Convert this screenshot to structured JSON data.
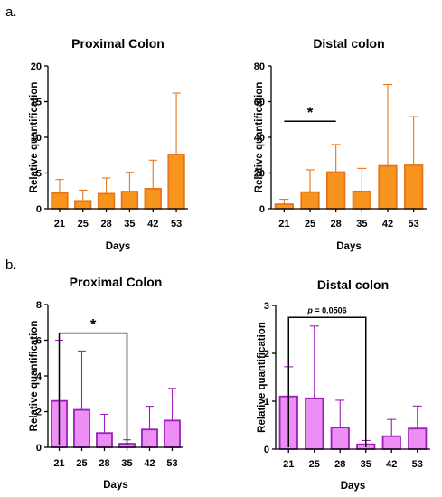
{
  "panels": [
    {
      "letter": "a."
    },
    {
      "letter": "b."
    }
  ],
  "chart_data": [
    {
      "type": "bar",
      "title": "Proximal Colon",
      "xlabel": "Days",
      "ylabel": "Relative quantification",
      "categories": [
        "21",
        "25",
        "28",
        "35",
        "42",
        "53"
      ],
      "values": [
        2.2,
        1.1,
        2.1,
        2.4,
        2.8,
        7.6
      ],
      "error_upper": [
        4.1,
        2.6,
        4.3,
        5.1,
        6.8,
        16.2
      ],
      "ylim": [
        0,
        20
      ],
      "yticks": [
        "0",
        "5",
        "10",
        "15",
        "20"
      ],
      "color": "#f7941d",
      "edge_color": "#e8751a",
      "annotations": []
    },
    {
      "type": "bar",
      "title": "Distal colon",
      "xlabel": "Days",
      "ylabel": "Relative quantification",
      "categories": [
        "21",
        "25",
        "28",
        "35",
        "42",
        "53"
      ],
      "values": [
        2.5,
        9.3,
        20.5,
        9.7,
        24.0,
        24.3
      ],
      "error_upper": [
        5.3,
        21.8,
        36.0,
        22.6,
        69.6,
        51.6
      ],
      "ylim": [
        0,
        80
      ],
      "yticks": [
        "0",
        "20",
        "40",
        "60",
        "80"
      ],
      "color": "#f7941d",
      "edge_color": "#e8751a",
      "annotations": [
        {
          "text": "*",
          "from": "21",
          "to": "28",
          "y": 49,
          "style": "line"
        }
      ]
    },
    {
      "type": "bar",
      "title": "Proximal Colon",
      "xlabel": "Days",
      "ylabel": "Relative quantification",
      "categories": [
        "21",
        "25",
        "28",
        "35",
        "42",
        "53"
      ],
      "values": [
        2.6,
        2.1,
        0.8,
        0.2,
        1.0,
        1.5
      ],
      "error_upper": [
        6.0,
        5.4,
        1.85,
        0.42,
        2.3,
        3.3
      ],
      "ylim": [
        0,
        8
      ],
      "yticks": [
        "0",
        "2",
        "4",
        "6",
        "8"
      ],
      "color": "#ec8ef5",
      "edge_color": "#9b1fb8",
      "annotations": [
        {
          "text": "*",
          "from": "21",
          "to": "35",
          "y": 6.4,
          "style": "bracket"
        }
      ]
    },
    {
      "type": "bar",
      "title": "Distal colon",
      "xlabel": "Days",
      "ylabel": "Relative quantification",
      "categories": [
        "21",
        "25",
        "28",
        "35",
        "42",
        "53"
      ],
      "values": [
        1.1,
        1.06,
        0.45,
        0.1,
        0.27,
        0.43
      ],
      "error_upper": [
        1.72,
        2.57,
        1.02,
        0.18,
        0.62,
        0.9
      ],
      "ylim": [
        0,
        3
      ],
      "yticks": [
        "0",
        "1",
        "2",
        "3"
      ],
      "color": "#ec8ef5",
      "edge_color": "#9b1fb8",
      "annotations": [
        {
          "text": "p = 0.0506",
          "from": "21",
          "to": "35",
          "y": 2.75,
          "style": "bracket"
        }
      ]
    }
  ]
}
